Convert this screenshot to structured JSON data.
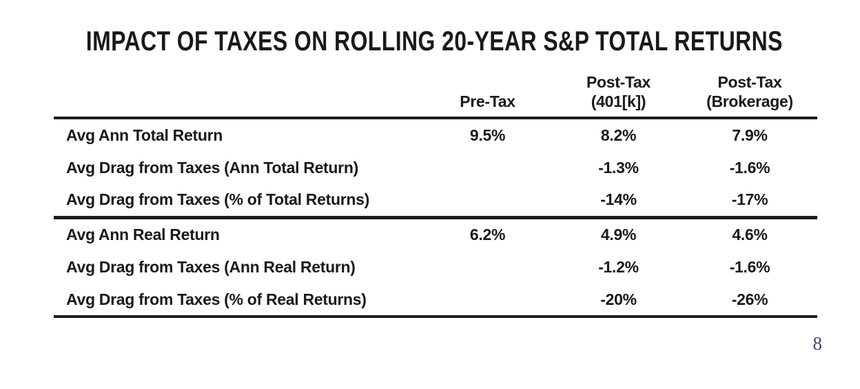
{
  "title": "IMPACT OF TAXES ON ROLLING 20-YEAR S&P TOTAL RETURNS",
  "table": {
    "columns": [
      {
        "line1": "",
        "line2": ""
      },
      {
        "line1": "",
        "line2": "Pre-Tax"
      },
      {
        "line1": "Post-Tax",
        "line2": "(401[k])"
      },
      {
        "line1": "Post-Tax",
        "line2": "(Brokerage)"
      }
    ],
    "rows": [
      {
        "label": "Avg Ann Total Return",
        "values": [
          "9.5%",
          "8.2%",
          "7.9%"
        ]
      },
      {
        "label": "Avg Drag from Taxes (Ann Total Return)",
        "values": [
          "",
          "-1.3%",
          "-1.6%"
        ]
      },
      {
        "label": "Avg Drag from Taxes (% of Total Returns)",
        "values": [
          "",
          "-14%",
          "-17%"
        ]
      },
      {
        "label": "Avg Ann Real Return",
        "values": [
          "6.2%",
          "4.9%",
          "4.6%"
        ]
      },
      {
        "label": "Avg Drag from Taxes (Ann Real Return)",
        "values": [
          "",
          "-1.2%",
          "-1.6%"
        ]
      },
      {
        "label": "Avg Drag from Taxes (% of Real Returns)",
        "values": [
          "",
          "-20%",
          "-26%"
        ]
      }
    ]
  },
  "page_number": "8",
  "colors": {
    "text": "#1b1819",
    "rule": "#1d1b1c",
    "page_number": "#3e4a63",
    "background": "#ffffff"
  }
}
